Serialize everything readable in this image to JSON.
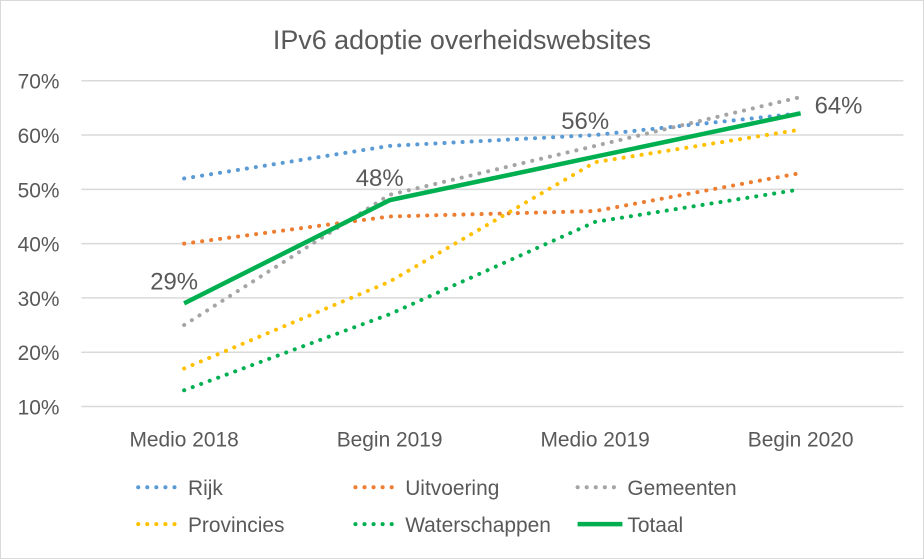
{
  "chart_data": {
    "type": "line",
    "title": "IPv6 adoptie overheidswebsites",
    "xlabel": "",
    "ylabel": "",
    "categories": [
      "Medio 2018",
      "Begin 2019",
      "Medio 2019",
      "Begin 2020"
    ],
    "ylim": [
      10,
      70
    ],
    "yticks": [
      10,
      20,
      30,
      40,
      50,
      60,
      70
    ],
    "ytick_labels": [
      "10%",
      "20%",
      "30%",
      "40%",
      "50%",
      "60%",
      "70%"
    ],
    "grid": true,
    "legend_position": "bottom",
    "series": [
      {
        "name": "Rijk",
        "values": [
          52,
          58,
          60,
          64
        ],
        "color": "#5b9bd5",
        "style": "dotted"
      },
      {
        "name": "Uitvoering",
        "values": [
          40,
          45,
          46,
          53
        ],
        "color": "#ed7d31",
        "style": "dotted"
      },
      {
        "name": "Gemeenten",
        "values": [
          25,
          49,
          58,
          67
        ],
        "color": "#a5a5a5",
        "style": "dotted"
      },
      {
        "name": "Provincies",
        "values": [
          17,
          33,
          55,
          61
        ],
        "color": "#ffc000",
        "style": "dotted"
      },
      {
        "name": "Waterschappen",
        "values": [
          13,
          27,
          44,
          50
        ],
        "color": "#00b050",
        "style": "dotted"
      },
      {
        "name": "Totaal",
        "values": [
          29,
          48,
          56,
          64
        ],
        "color": "#00b050",
        "style": "solid"
      }
    ],
    "data_labels": {
      "series": "Totaal",
      "labels": [
        "29%",
        "48%",
        "56%",
        "64%"
      ]
    }
  }
}
